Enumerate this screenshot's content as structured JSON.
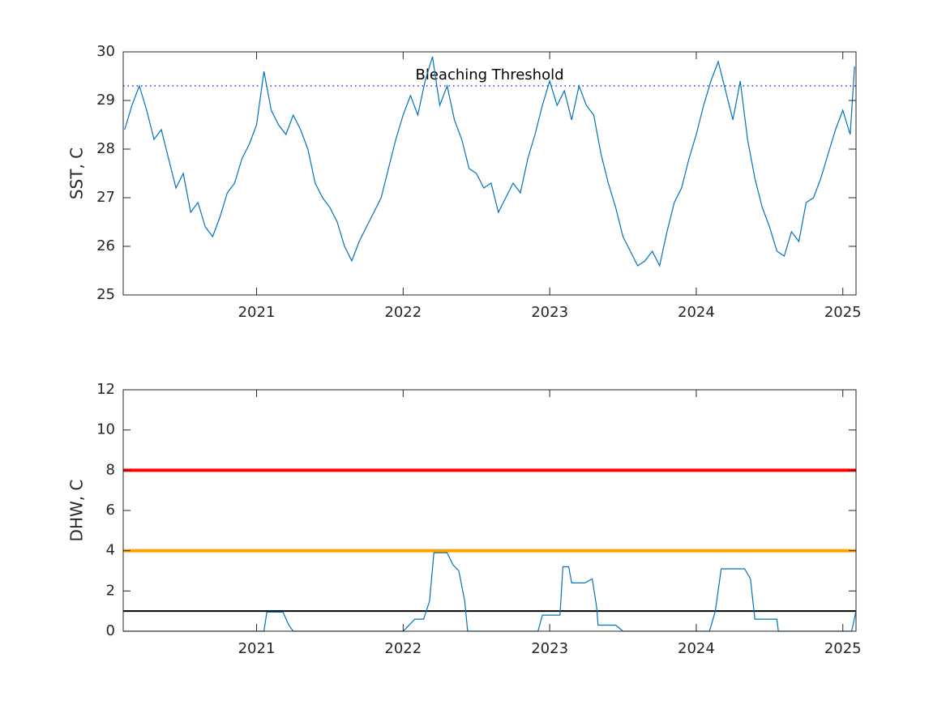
{
  "chart_data": [
    {
      "type": "line",
      "ylabel": "SST, C",
      "color": "#0072bd",
      "x": [
        2020.1,
        2020.15,
        2020.2,
        2020.25,
        2020.3,
        2020.35,
        2020.4,
        2020.45,
        2020.5,
        2020.55,
        2020.6,
        2020.65,
        2020.7,
        2020.75,
        2020.8,
        2020.85,
        2020.9,
        2020.95,
        2021.0,
        2021.05,
        2021.1,
        2021.15,
        2021.2,
        2021.25,
        2021.3,
        2021.35,
        2021.4,
        2021.45,
        2021.5,
        2021.55,
        2021.6,
        2021.65,
        2021.7,
        2021.75,
        2021.8,
        2021.85,
        2021.9,
        2021.95,
        2022.0,
        2022.05,
        2022.1,
        2022.15,
        2022.2,
        2022.25,
        2022.3,
        2022.35,
        2022.4,
        2022.45,
        2022.5,
        2022.55,
        2022.6,
        2022.65,
        2022.7,
        2022.75,
        2022.8,
        2022.85,
        2022.9,
        2022.95,
        2023.0,
        2023.05,
        2023.1,
        2023.15,
        2023.2,
        2023.25,
        2023.3,
        2023.35,
        2023.4,
        2023.45,
        2023.5,
        2023.55,
        2023.6,
        2023.65,
        2023.7,
        2023.75,
        2023.8,
        2023.85,
        2023.9,
        2023.95,
        2024.0,
        2024.05,
        2024.1,
        2024.15,
        2024.2,
        2024.25,
        2024.3,
        2024.35,
        2024.4,
        2024.45,
        2024.5,
        2024.55,
        2024.6,
        2024.65,
        2024.7,
        2024.75,
        2024.8,
        2024.85,
        2024.9,
        2024.95,
        2025.0,
        2025.05,
        2025.08
      ],
      "values": [
        28.4,
        28.9,
        29.3,
        28.8,
        28.2,
        28.4,
        27.8,
        27.2,
        27.5,
        26.7,
        26.9,
        26.4,
        26.2,
        26.6,
        27.1,
        27.3,
        27.8,
        28.1,
        28.5,
        29.6,
        28.8,
        28.5,
        28.3,
        28.7,
        28.4,
        28.0,
        27.3,
        27.0,
        26.8,
        26.5,
        26.0,
        25.7,
        26.1,
        26.4,
        26.7,
        27.0,
        27.6,
        28.2,
        28.7,
        29.1,
        28.7,
        29.4,
        29.9,
        28.9,
        29.3,
        28.6,
        28.2,
        27.6,
        27.5,
        27.2,
        27.3,
        26.7,
        27.0,
        27.3,
        27.1,
        27.8,
        28.3,
        28.9,
        29.4,
        28.9,
        29.2,
        28.6,
        29.3,
        28.9,
        28.7,
        27.9,
        27.3,
        26.8,
        26.2,
        25.9,
        25.6,
        25.7,
        25.9,
        25.6,
        26.3,
        26.9,
        27.2,
        27.8,
        28.3,
        28.9,
        29.4,
        29.8,
        29.2,
        28.6,
        29.4,
        28.2,
        27.4,
        26.8,
        26.4,
        25.9,
        25.8,
        26.3,
        26.1,
        26.9,
        27.0,
        27.4,
        27.9,
        28.4,
        28.8,
        28.3,
        29.7
      ],
      "xlim": [
        2020.09,
        2025.09
      ],
      "ylim": [
        25,
        30
      ],
      "xticks": [
        2021,
        2022,
        2023,
        2024,
        2025
      ],
      "yticks": [
        25,
        26,
        27,
        28,
        29,
        30
      ],
      "hlines": [
        {
          "value": 29.3,
          "color": "#0000ff",
          "style": "dotted",
          "label": "Bleaching Threshold"
        }
      ]
    },
    {
      "type": "line",
      "ylabel": "DHW, C",
      "color": "#0072bd",
      "x": [
        2020.09,
        2021.05,
        2021.07,
        2021.18,
        2021.22,
        2021.25,
        2022.0,
        2022.08,
        2022.14,
        2022.18,
        2022.21,
        2022.3,
        2022.34,
        2022.38,
        2022.42,
        2022.44,
        2022.92,
        2022.95,
        2023.07,
        2023.09,
        2023.13,
        2023.15,
        2023.24,
        2023.29,
        2023.32,
        2023.33,
        2023.45,
        2023.5,
        2024.09,
        2024.13,
        2024.17,
        2024.33,
        2024.37,
        2024.4,
        2024.55,
        2024.56,
        2025.06,
        2025.09
      ],
      "values": [
        0,
        0,
        0.95,
        0.95,
        0.3,
        0,
        0,
        0.6,
        0.6,
        1.5,
        3.9,
        3.9,
        3.3,
        3.0,
        1.5,
        0,
        0,
        0.8,
        0.8,
        3.2,
        3.2,
        2.4,
        2.4,
        2.6,
        1.2,
        0.3,
        0.3,
        0,
        0,
        1.0,
        3.1,
        3.1,
        2.6,
        0.6,
        0.6,
        0,
        0,
        1.0
      ],
      "xlim": [
        2020.09,
        2025.09
      ],
      "ylim": [
        0,
        12
      ],
      "xticks": [
        2021,
        2022,
        2023,
        2024,
        2025
      ],
      "yticks": [
        0,
        2,
        4,
        6,
        8,
        10,
        12
      ],
      "hlines": [
        {
          "value": 8,
          "color": "#ff0000",
          "style": "solid"
        },
        {
          "value": 4,
          "color": "#ffa500",
          "style": "solid"
        },
        {
          "value": 1,
          "color": "#000000",
          "style": "thin"
        }
      ]
    }
  ]
}
